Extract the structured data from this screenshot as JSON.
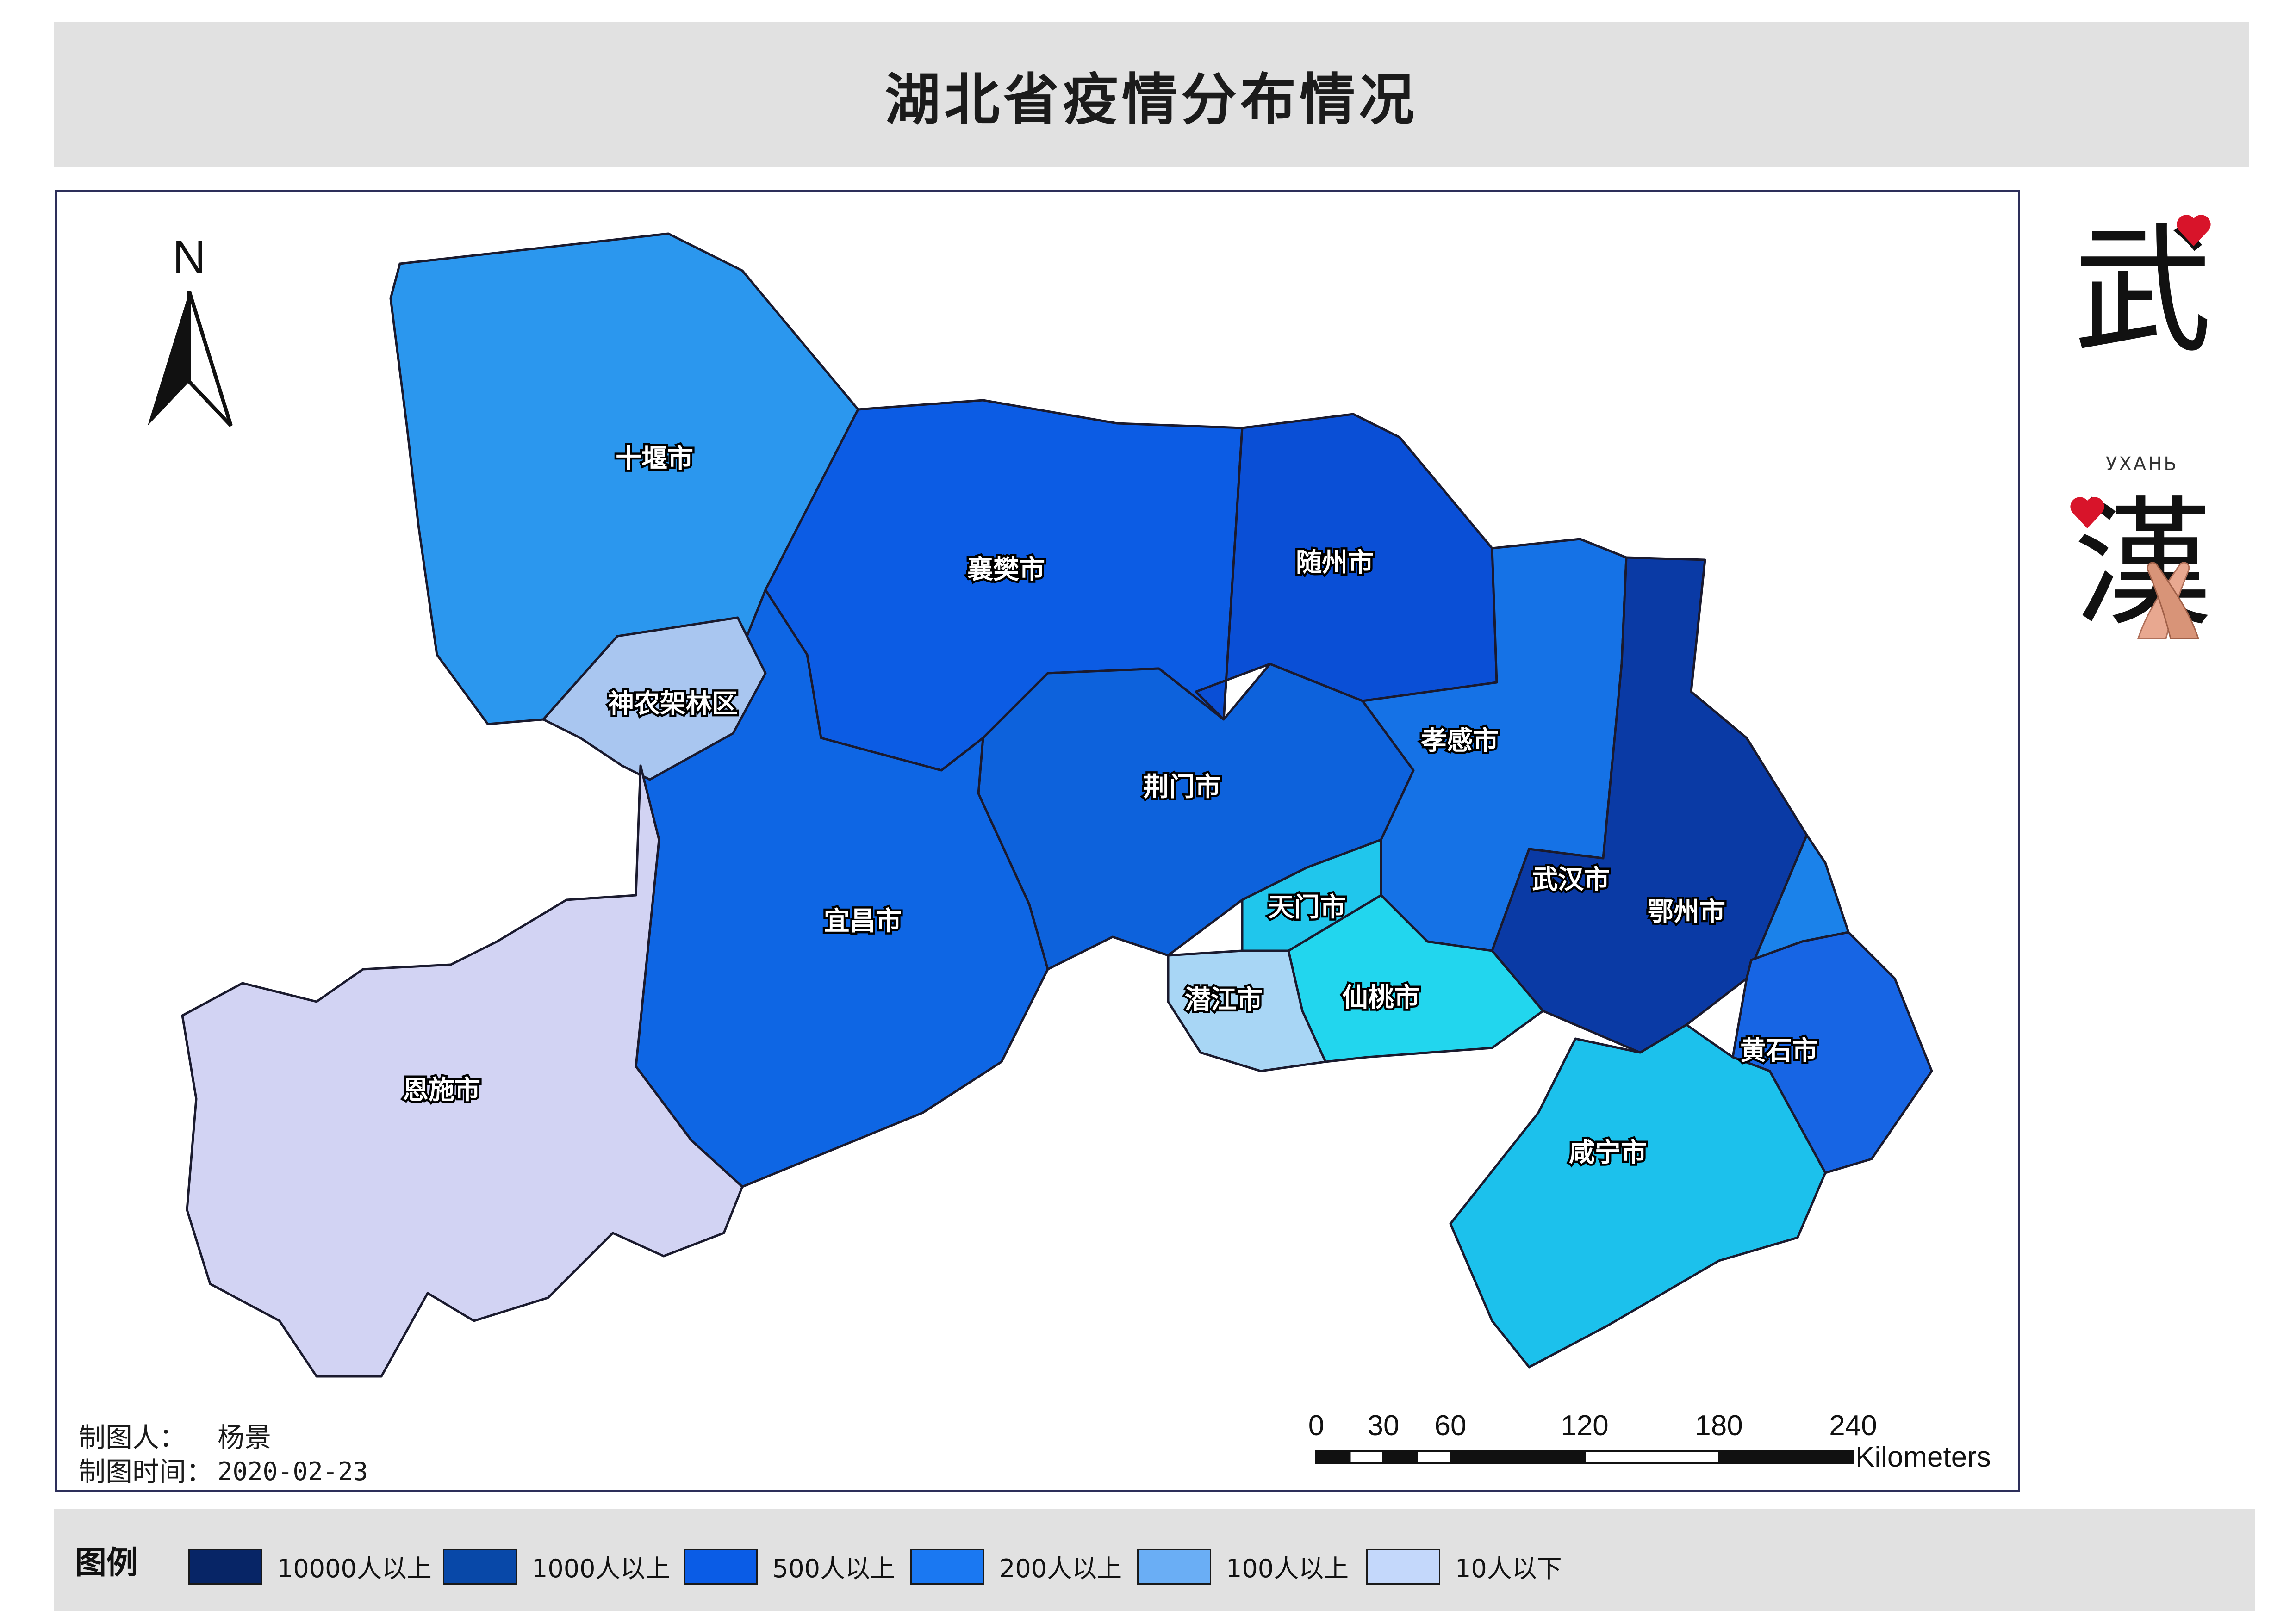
{
  "title": "湖北省疫情分布情况",
  "north_label": "N",
  "credits": {
    "author_label": "制图人：",
    "author": "杨景",
    "date_label": "制图时间：",
    "date": "2020-02-23"
  },
  "scale_bar": {
    "ticks": [
      "0",
      "30",
      "60",
      "120",
      "180",
      "240"
    ],
    "unit": "Kilometers"
  },
  "logo": {
    "char_top": "武",
    "char_bottom": "漢",
    "subtitle": "УХАНЬ",
    "accent_color": "#d8142a"
  },
  "legend": {
    "title": "图例",
    "items": [
      {
        "label": "10000人以上",
        "color": "#072566"
      },
      {
        "label": "1000人以上",
        "color": "#0848a8"
      },
      {
        "label": "500人以上",
        "color": "#0a5ce6"
      },
      {
        "label": "200人以上",
        "color": "#1a78f2"
      },
      {
        "label": "100人以上",
        "color": "#6aaef5"
      },
      {
        "label": "10人以下",
        "color": "#c4d8fb"
      }
    ]
  },
  "regions": [
    {
      "name": "十堰市",
      "color": "#2b97ee"
    },
    {
      "name": "襄樊市",
      "color": "#0c5ce4"
    },
    {
      "name": "随州市",
      "color": "#0a4fd6"
    },
    {
      "name": "孝感市",
      "color": "#1572e6"
    },
    {
      "name": "武汉市",
      "color": "#0a3aa5"
    },
    {
      "name": "鄂州市",
      "color": "#1b82ea"
    },
    {
      "name": "黄石市",
      "color": "#1765e4"
    },
    {
      "name": "咸宁市",
      "color": "#1cc1ec"
    },
    {
      "name": "仙桃市",
      "color": "#22d6ee"
    },
    {
      "name": "天门市",
      "color": "#20c6ec"
    },
    {
      "name": "潜江市",
      "color": "#a8d6f5"
    },
    {
      "name": "荆门市",
      "color": "#0d62dc"
    },
    {
      "name": "宜昌市",
      "color": "#0e66e4"
    },
    {
      "name": "神农架林区",
      "color": "#a9c6f0"
    },
    {
      "name": "恩施市",
      "color": "#d2d3f3"
    }
  ]
}
